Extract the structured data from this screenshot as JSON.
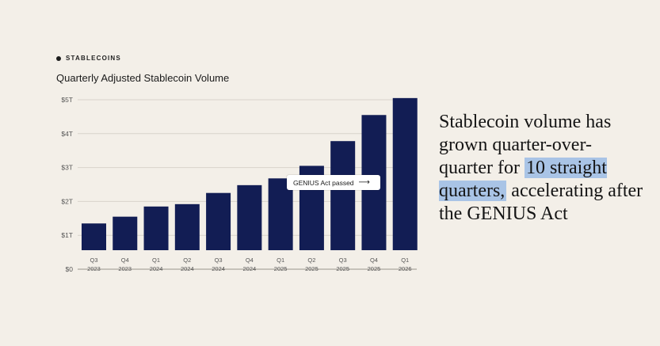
{
  "tag": "STABLECOINS",
  "chart_data": {
    "type": "bar",
    "title": "Quarterly Adjusted Stablecoin Volume",
    "categories": [
      [
        "Q3",
        "2023"
      ],
      [
        "Q4",
        "2023"
      ],
      [
        "Q1",
        "2024"
      ],
      [
        "Q2",
        "2024"
      ],
      [
        "Q3",
        "2024"
      ],
      [
        "Q4",
        "2024"
      ],
      [
        "Q1",
        "2025"
      ],
      [
        "Q2",
        "2025"
      ],
      [
        "Q3",
        "2025"
      ],
      [
        "Q4",
        "2025"
      ],
      [
        "Q1",
        "2026"
      ]
    ],
    "values": [
      1.35,
      1.55,
      1.85,
      1.92,
      2.25,
      2.48,
      2.68,
      3.05,
      3.78,
      4.55,
      5.05
    ],
    "yticks": [
      "$0",
      "$1T",
      "$2T",
      "$3T",
      "$4T",
      "$5T"
    ],
    "ylim": [
      0,
      5
    ],
    "bar_color": "#121d54",
    "grid": true,
    "annotation": {
      "text": "GENIUS Act passed",
      "arrow": "⟶"
    }
  },
  "headline": {
    "before": "Stablecoin volume has grown quarter-over-quarter for ",
    "highlight": "10 straight quarters,",
    "after": " accelerating after the GENIUS Act"
  },
  "colors": {
    "background": "#f3efe8",
    "highlight": "#a9c4e6"
  }
}
